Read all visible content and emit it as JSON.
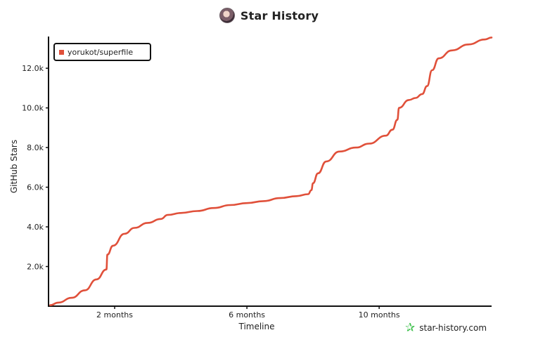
{
  "header": {
    "title": "Star History"
  },
  "legend": {
    "series_label": "yorukot/superfile"
  },
  "branding": {
    "site": "star-history.com"
  },
  "colors": {
    "series": "#e0503a",
    "axis": "#111111",
    "brand": "#3bbf4a"
  },
  "chart_data": {
    "type": "line",
    "title": "Star History",
    "xlabel": "Timeline",
    "ylabel": "GitHub Stars",
    "x_unit": "months",
    "xlim": [
      0,
      13.4
    ],
    "ylim": [
      0,
      13600
    ],
    "x_ticks": [
      {
        "value": 2,
        "label": "2 months"
      },
      {
        "value": 6,
        "label": "6 months"
      },
      {
        "value": 10,
        "label": "10 months"
      }
    ],
    "y_ticks": [
      {
        "value": 2000,
        "label": "2.0k"
      },
      {
        "value": 4000,
        "label": "4.0k"
      },
      {
        "value": 6000,
        "label": "6.0k"
      },
      {
        "value": 8000,
        "label": "8.0k"
      },
      {
        "value": 10000,
        "label": "10.0k"
      },
      {
        "value": 12000,
        "label": "12.0k"
      }
    ],
    "legend_position": "top-left",
    "grid": false,
    "series": [
      {
        "name": "yorukot/superfile",
        "points": [
          [
            0.05,
            50
          ],
          [
            0.3,
            180
          ],
          [
            0.7,
            420
          ],
          [
            1.1,
            800
          ],
          [
            1.45,
            1350
          ],
          [
            1.75,
            1850
          ],
          [
            1.78,
            2600
          ],
          [
            1.95,
            3050
          ],
          [
            2.3,
            3650
          ],
          [
            2.6,
            3950
          ],
          [
            3.0,
            4200
          ],
          [
            3.4,
            4400
          ],
          [
            3.6,
            4600
          ],
          [
            4.0,
            4700
          ],
          [
            4.5,
            4800
          ],
          [
            5.0,
            4950
          ],
          [
            5.5,
            5100
          ],
          [
            6.0,
            5200
          ],
          [
            6.5,
            5300
          ],
          [
            7.0,
            5450
          ],
          [
            7.5,
            5550
          ],
          [
            7.85,
            5650
          ],
          [
            7.95,
            5850
          ],
          [
            8.0,
            6200
          ],
          [
            8.15,
            6700
          ],
          [
            8.4,
            7300
          ],
          [
            8.8,
            7800
          ],
          [
            9.3,
            8000
          ],
          [
            9.7,
            8200
          ],
          [
            10.2,
            8600
          ],
          [
            10.4,
            8900
          ],
          [
            10.55,
            9400
          ],
          [
            10.6,
            10000
          ],
          [
            10.9,
            10400
          ],
          [
            11.1,
            10500
          ],
          [
            11.3,
            10700
          ],
          [
            11.45,
            11100
          ],
          [
            11.6,
            11900
          ],
          [
            11.8,
            12500
          ],
          [
            12.2,
            12900
          ],
          [
            12.7,
            13200
          ],
          [
            13.2,
            13450
          ],
          [
            13.4,
            13550
          ]
        ]
      }
    ]
  }
}
